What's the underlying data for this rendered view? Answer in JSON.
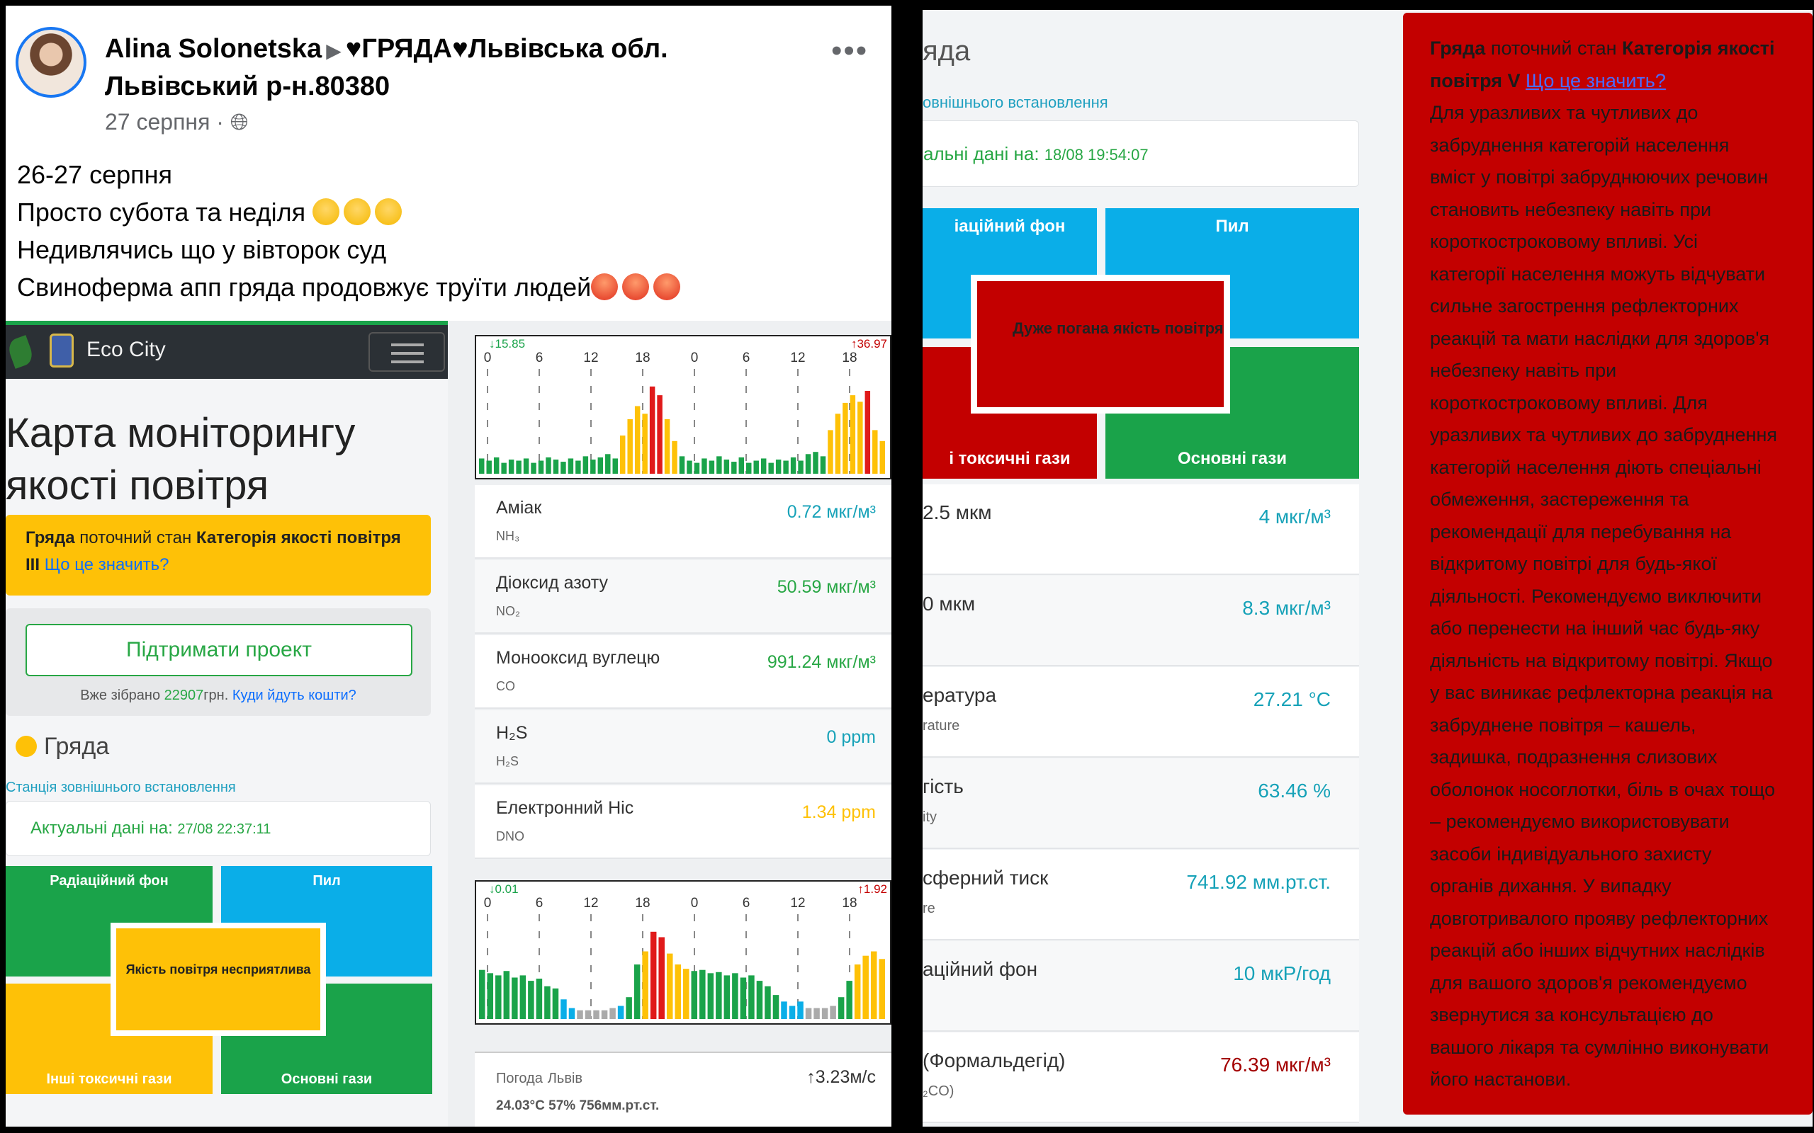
{
  "post": {
    "author": "Alina Solonetska",
    "group": "♥ГРЯДА♥Львівська обл. Львівський р-н.80380",
    "date": "27 серпня ·",
    "more": "•••",
    "lines": [
      "26-27 серпня",
      "Просто субота та неділя",
      "Недивлячись що у вівторок  суд",
      "Свиноферма апп гряда продовжує труїти людей"
    ]
  },
  "eco": {
    "brand": "Eco City",
    "title": "Карта моніторингу якості повітря",
    "alert": {
      "station": "Гряда",
      "text": " поточний стан ",
      "category": "Категорія якості повітря III",
      "link": "Що це значить?"
    },
    "support": {
      "button": "Підтримати проект",
      "collected_prefix": "Вже зібрано ",
      "collected_amount": "22907",
      "collected_suffix": "грн. ",
      "link": "Куди йдуть кошти?"
    },
    "station": "Гряда",
    "station_type": "Станція зовнішнього встановлення",
    "actual_label": "Актуальні дані на: ",
    "actual_time": "27/08 22:37:11",
    "quad": {
      "tl": "Радіаційний фон",
      "tr": "Пил",
      "bl": "Інші токсичні гази",
      "br": "Основні гази",
      "center": "Якість повітря несприятлива"
    },
    "chart1": {
      "min": "↓15.85",
      "max": "↑36.97",
      "ticks": [
        "0",
        "6",
        "12",
        "18",
        "0",
        "6",
        "12",
        "18"
      ]
    },
    "chart2": {
      "min": "↓0.01",
      "max": "↑1.92",
      "ticks": [
        "0",
        "6",
        "12",
        "18",
        "0",
        "6",
        "12",
        "18"
      ]
    },
    "readings": [
      {
        "name": "Аміак",
        "sub": "NH₃",
        "value": "0.72 мкг/м³",
        "color": "#17a2b8"
      },
      {
        "name": "Діоксид азоту",
        "sub": "NO₂",
        "value": "50.59 мкг/м³",
        "color": "#28a745"
      },
      {
        "name": "Монооксид вуглецю",
        "sub": "CO",
        "value": "991.24 мкг/м³",
        "color": "#28a745"
      },
      {
        "name": "H₂S",
        "sub": "H₂S",
        "value": "0 ppm",
        "color": "#17a2b8"
      },
      {
        "name": "Електронний Ніс",
        "sub": "DNO",
        "value": "1.34 ppm",
        "color": "#fec107"
      }
    ],
    "weather": {
      "title": "Погода",
      "city": "Львів",
      "wind": "↑3.23м/с",
      "details": "24.03°C   57%   756мм.рт.ст."
    }
  },
  "right": {
    "station": "яда",
    "station_type": "овнішнього встановлення",
    "actual_label": "альні дані на: ",
    "actual_time": "18/08 19:54:07",
    "quad": {
      "tl": "іаційний фон",
      "tr": "Пил",
      "bl": "і токсичні гази",
      "br": "Основні гази",
      "center": "Дуже погана якість повітря"
    },
    "rows": [
      {
        "name": "2.5 мкм",
        "sub": "",
        "value": "4 мкг/м³",
        "color": "#17a2b8"
      },
      {
        "name": "0 мкм",
        "sub": "",
        "value": "8.3 мкг/м³",
        "color": "#17a2b8"
      },
      {
        "name": "ература",
        "sub": "rature",
        "value": "27.21 °C",
        "color": "#17a2b8"
      },
      {
        "name": "гість",
        "sub": "ity",
        "value": "63.46 %",
        "color": "#17a2b8"
      },
      {
        "name": "сферний тиск",
        "sub": "re",
        "value": "741.92 мм.рт.ст.",
        "color": "#17a2b8"
      },
      {
        "name": "аційний фон",
        "sub": "",
        "value": "10 мкР/год",
        "color": "#17a2b8"
      },
      {
        "name": "(Формальдегід)",
        "sub": "₂CO)",
        "value": "76.39 мкг/м³",
        "color": "#a30000"
      }
    ],
    "alert": {
      "station": "Гряда",
      "text1": " поточний стан ",
      "category": "Категорія якості повітря V",
      "link": "Що це значить?",
      "lines": [
        "Для уразливих та чутливих до",
        "забруднення категорій населення",
        "вміст у повітрі забруднюючих речовин",
        "становить небезпеку навіть при",
        "короткостроковому впливі. Усі",
        "категорії населення можуть відчувати",
        "сильне загострення рефлекторних",
        "реакцій та мати наслідки для здоров'я",
        "небезпеку навіть при",
        "короткостроковому впливі. Для",
        "уразливих та чутливих до забруднення",
        "категорій населення діють спеціальні",
        "обмеження, застереження та",
        "рекомендації для перебування на",
        "відкритому повітрі для будь-якої",
        "діяльності. Рекомендуємо виключити",
        "або перенести на інший час будь-яку",
        "діяльність на відкритому повітрі. Якщо",
        "у вас виникає рефлекторна реакція на",
        "забруднене повітря – кашель,",
        "задишка, подразнення слизових",
        "оболонок носоглотки, біль в очах тощо",
        "– рекомендуємо використовувати",
        "засоби індивідуального захисту",
        "органів дихання. У випадку",
        "довготривалого прояву рефлекторних",
        "реакцій або інших відчутних наслідків",
        "для вашого здоров'я рекомендуємо",
        "звернутися за консультацією до",
        "вашого лікаря та сумлінно виконувати",
        "його настанови."
      ]
    }
  },
  "colors": {
    "green": "#1aa34a",
    "yellow": "#fec107",
    "red": "#c30000",
    "blue": "#0aaee8",
    "facebook": "#1877f2"
  }
}
